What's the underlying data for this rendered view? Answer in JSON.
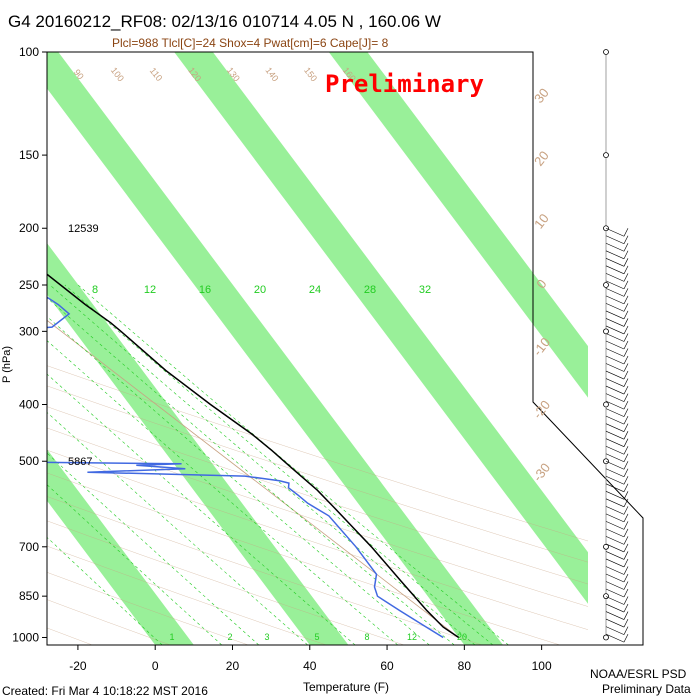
{
  "header": {
    "title": "G4 20160212_RF08: 02/13/16 010714   4.05 N , 160.06 W",
    "subtitle": "Plcl=988 Tlcl[C]=24 Shox=4 Pwat[cm]=6 Cape[J]= 8",
    "stamp": "Preliminary"
  },
  "footer": {
    "created": "Created: Fri Mar  4 10:18:22 MST 2016",
    "credit_line1": "NOAA/ESRL PSD",
    "credit_line2": "Preliminary Data"
  },
  "colors": {
    "band": "#99f099",
    "temperature": "#000000",
    "dewpoint": "#4169e1",
    "dry_adiabat": "#c8a282",
    "isotherm_label": "#c8a282",
    "mixing_ratio": "#22cc22",
    "moist_adiabat": "#22aa22",
    "parcel": "#c8a282",
    "stamp": "#ff0000"
  },
  "chart_data": {
    "type": "skew-t",
    "xlabel": "Temperature (F)",
    "ylabel": "P (hPa)",
    "x_ticks": [
      -20,
      0,
      20,
      40,
      60,
      80,
      100
    ],
    "xlim": [
      -28,
      112
    ],
    "y_ticks": [
      100,
      150,
      200,
      250,
      300,
      400,
      500,
      700,
      850,
      1000
    ],
    "ylim": [
      1030,
      100
    ],
    "y_scale": "log",
    "isotherm_labels": [
      -40,
      -30,
      -20,
      -10,
      0,
      10,
      20,
      30,
      40,
      50,
      60,
      70,
      80,
      90,
      100,
      110,
      120,
      130,
      140,
      150,
      160
    ],
    "isotherm_label_units": "F",
    "isotherm_labels_right_c": [
      30,
      20,
      10,
      0,
      -10,
      -20,
      -30
    ],
    "mixing_ratio_labels": [
      {
        "label": "8",
        "p": 258
      },
      {
        "label": "12",
        "p": 258
      },
      {
        "label": "16",
        "p": 258
      },
      {
        "label": "20",
        "p": 258
      },
      {
        "label": "24",
        "p": 258
      },
      {
        "label": "28",
        "p": 258
      },
      {
        "label": "32",
        "p": 258
      }
    ],
    "mixing_ratio_bottom_labels": [
      "1",
      "2",
      "3",
      "5",
      "8",
      "12",
      "20"
    ],
    "height_labels": [
      {
        "label": "12539",
        "p": 200
      },
      {
        "label": "5867",
        "p": 500
      }
    ],
    "temperature_profile": [
      {
        "p": 180,
        "t": 34
      },
      {
        "p": 200,
        "t": 38
      },
      {
        "p": 240,
        "t": 44
      },
      {
        "p": 270,
        "t": 48
      },
      {
        "p": 290,
        "t": 51
      },
      {
        "p": 300,
        "t": 52
      },
      {
        "p": 350,
        "t": 56
      },
      {
        "p": 400,
        "t": 61
      },
      {
        "p": 450,
        "t": 66
      },
      {
        "p": 480,
        "t": 68
      },
      {
        "p": 500,
        "t": 69
      },
      {
        "p": 520,
        "t": 70
      },
      {
        "p": 560,
        "t": 72
      },
      {
        "p": 600,
        "t": 73
      },
      {
        "p": 650,
        "t": 74
      },
      {
        "p": 700,
        "t": 75
      },
      {
        "p": 800,
        "t": 76
      },
      {
        "p": 900,
        "t": 77
      },
      {
        "p": 960,
        "t": 78
      },
      {
        "p": 1000,
        "t": 80
      }
    ],
    "dewpoint_profile": [
      {
        "p": 195,
        "t": 20
      },
      {
        "p": 210,
        "t": 27
      },
      {
        "p": 245,
        "t": 36
      },
      {
        "p": 270,
        "t": 41
      },
      {
        "p": 280,
        "t": 42
      },
      {
        "p": 295,
        "t": 35
      },
      {
        "p": 308,
        "t": 0
      },
      {
        "p": 312,
        "t": -22
      },
      {
        "p": 320,
        "t": -18
      },
      {
        "p": 350,
        "t": -17
      },
      {
        "p": 400,
        "t": -18
      },
      {
        "p": 450,
        "t": -17
      },
      {
        "p": 470,
        "t": -11
      },
      {
        "p": 480,
        "t": -17
      },
      {
        "p": 500,
        "t": -22
      },
      {
        "p": 505,
        "t": 42
      },
      {
        "p": 508,
        "t": 30
      },
      {
        "p": 515,
        "t": 42
      },
      {
        "p": 522,
        "t": 16
      },
      {
        "p": 530,
        "t": 56
      },
      {
        "p": 535,
        "t": 60
      },
      {
        "p": 540,
        "t": 64
      },
      {
        "p": 545,
        "t": 66
      },
      {
        "p": 555,
        "t": 65
      },
      {
        "p": 570,
        "t": 66
      },
      {
        "p": 590,
        "t": 67
      },
      {
        "p": 620,
        "t": 70
      },
      {
        "p": 700,
        "t": 71
      },
      {
        "p": 780,
        "t": 71
      },
      {
        "p": 820,
        "t": 68
      },
      {
        "p": 850,
        "t": 67
      },
      {
        "p": 900,
        "t": 70
      },
      {
        "p": 950,
        "t": 73
      },
      {
        "p": 1000,
        "t": 76
      }
    ],
    "wind_levels": [
      100,
      150,
      200,
      250,
      300,
      400,
      500,
      700,
      850,
      1000
    ],
    "grid": false
  }
}
